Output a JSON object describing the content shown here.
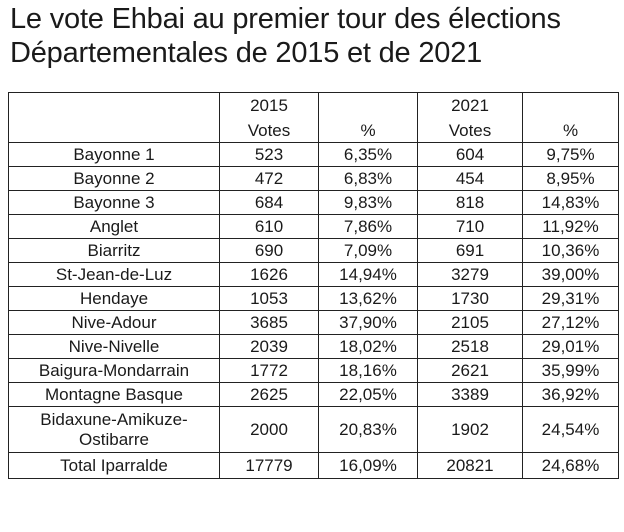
{
  "title_lines": [
    "Le vote Ehbai au premier tour des élections",
    "Départementales de 2015 et de 2021"
  ],
  "table": {
    "years": [
      "2015",
      "2021"
    ],
    "subheaders": [
      "Votes",
      "%",
      "Votes",
      "%"
    ],
    "rows": [
      {
        "name": "Bayonne 1",
        "v2015": "523",
        "p2015": "6,35%",
        "v2021": "604",
        "p2021": "9,75%"
      },
      {
        "name": "Bayonne 2",
        "v2015": "472",
        "p2015": "6,83%",
        "v2021": "454",
        "p2021": "8,95%"
      },
      {
        "name": "Bayonne 3",
        "v2015": "684",
        "p2015": "9,83%",
        "v2021": "818",
        "p2021": "14,83%"
      },
      {
        "name": "Anglet",
        "v2015": "610",
        "p2015": "7,86%",
        "v2021": "710",
        "p2021": "11,92%"
      },
      {
        "name": "Biarritz",
        "v2015": "690",
        "p2015": "7,09%",
        "v2021": "691",
        "p2021": "10,36%"
      },
      {
        "name": "St-Jean-de-Luz",
        "v2015": "1626",
        "p2015": "14,94%",
        "v2021": "3279",
        "p2021": "39,00%"
      },
      {
        "name": "Hendaye",
        "v2015": "1053",
        "p2015": "13,62%",
        "v2021": "1730",
        "p2021": "29,31%"
      },
      {
        "name": "Nive-Adour",
        "v2015": "3685",
        "p2015": "37,90%",
        "v2021": "2105",
        "p2021": "27,12%"
      },
      {
        "name": "Nive-Nivelle",
        "v2015": "2039",
        "p2015": "18,02%",
        "v2021": "2518",
        "p2021": "29,01%"
      },
      {
        "name": "Baigura-Mondarrain",
        "v2015": "1772",
        "p2015": "18,16%",
        "v2021": "2621",
        "p2021": "35,99%"
      },
      {
        "name": "Montagne Basque",
        "v2015": "2625",
        "p2015": "22,05%",
        "v2021": "3389",
        "p2021": "36,92%"
      },
      {
        "name": "Bidaxune-Amikuze-Ostibarre",
        "v2015": "2000",
        "p2015": "20,83%",
        "v2021": "1902",
        "p2021": "24,54%"
      },
      {
        "name": "Total Iparralde",
        "v2015": "17779",
        "p2015": "16,09%",
        "v2021": "20821",
        "p2021": "24,68%"
      }
    ]
  }
}
